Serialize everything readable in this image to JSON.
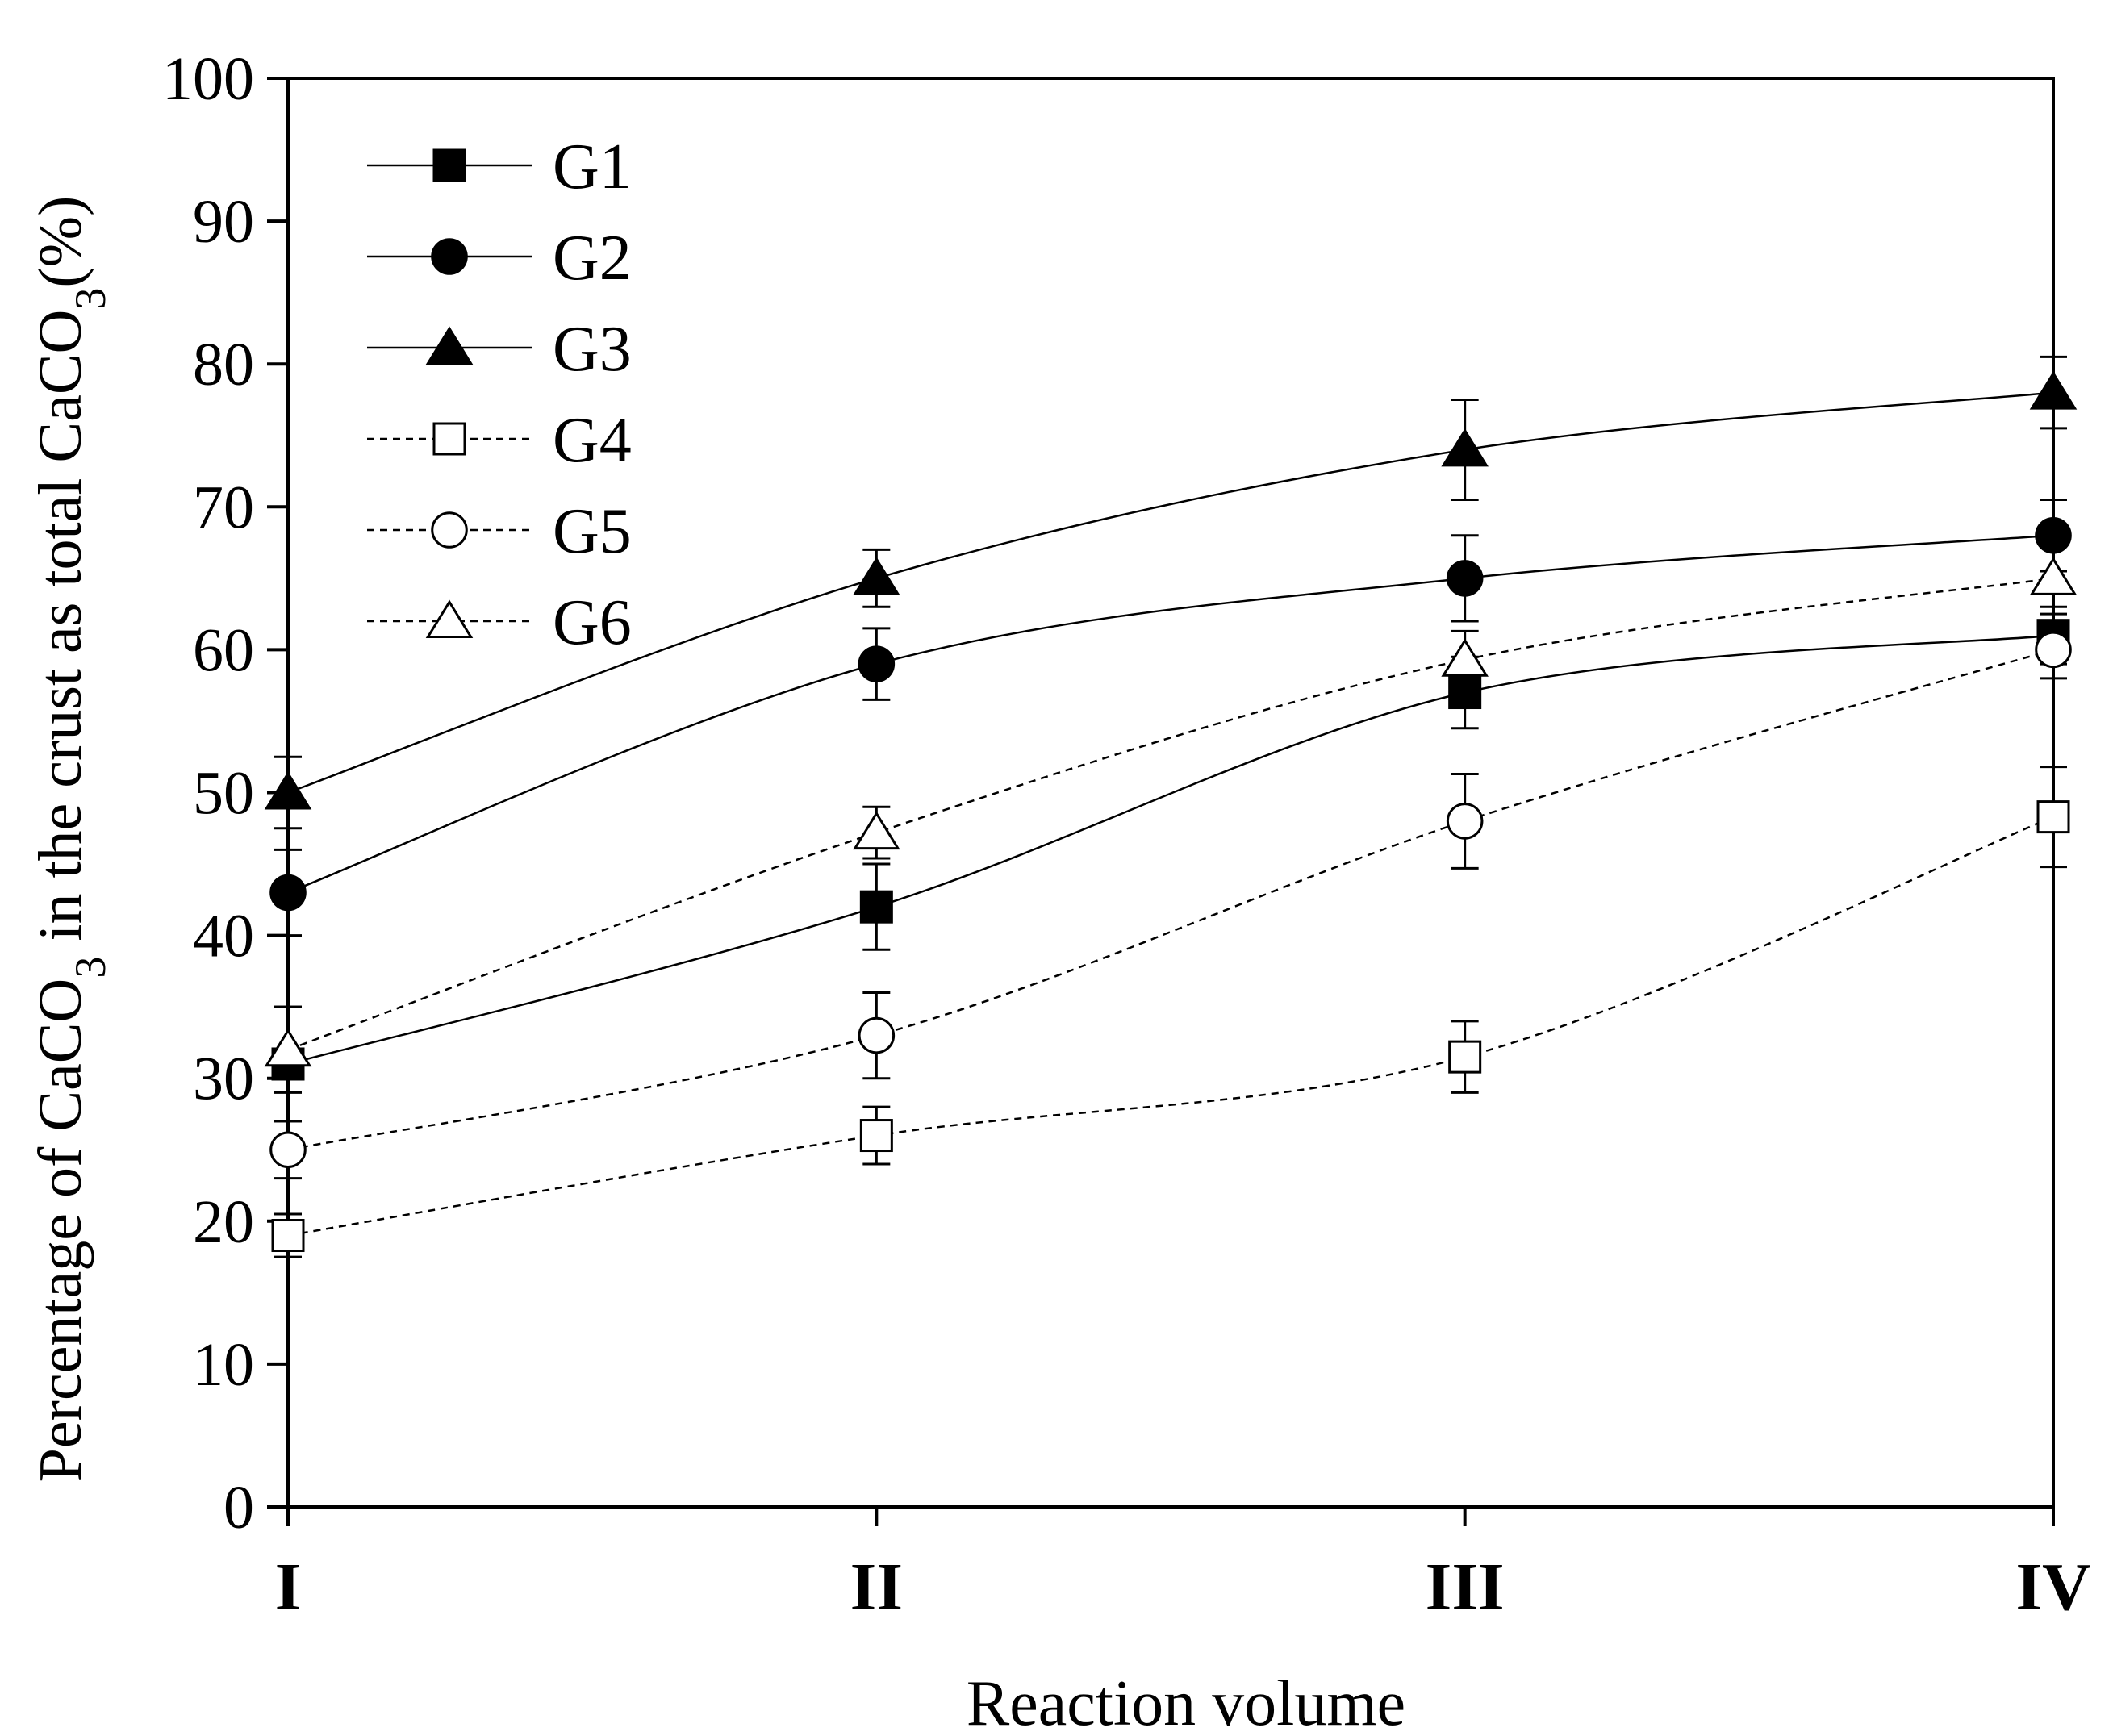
{
  "chart_data": {
    "type": "line",
    "title": "",
    "xlabel": "Reaction volume",
    "ylabel": {
      "part1": "Percentage of CaCO",
      "sub1": "3",
      "part2": " in the crust as total CaCO",
      "sub2": "3",
      "part3": "(%)"
    },
    "categories": [
      "I",
      "II",
      "III",
      "IV"
    ],
    "ylim": [
      0,
      100
    ],
    "yticks": [
      0,
      10,
      20,
      30,
      40,
      50,
      60,
      70,
      80,
      90,
      100
    ],
    "legend_position": "top-left",
    "series": [
      {
        "name": "G1",
        "marker": "square",
        "filled": true,
        "line": "solid",
        "values": [
          31,
          42,
          57,
          61
        ],
        "errors": [
          4,
          3,
          2.5,
          2
        ]
      },
      {
        "name": "G2",
        "marker": "circle",
        "filled": true,
        "line": "solid",
        "values": [
          43,
          59,
          65,
          68
        ],
        "errors": [
          3,
          2.5,
          3,
          2.5
        ]
      },
      {
        "name": "G3",
        "marker": "triangle",
        "filled": true,
        "line": "solid",
        "values": [
          50,
          65,
          74,
          78
        ],
        "errors": [
          2.5,
          2,
          3.5,
          2.5
        ]
      },
      {
        "name": "G4",
        "marker": "square",
        "filled": false,
        "line": "dashed",
        "values": [
          19,
          26,
          31.5,
          48.3
        ],
        "errors": [
          1.5,
          2,
          2.5,
          3.5
        ]
      },
      {
        "name": "G5",
        "marker": "circle",
        "filled": false,
        "line": "dashed",
        "values": [
          25,
          33,
          48,
          60
        ],
        "errors": [
          2,
          3,
          3.3,
          2
        ]
      },
      {
        "name": "G6",
        "marker": "triangle",
        "filled": false,
        "line": "dashed",
        "values": [
          32,
          47.2,
          59.3,
          65
        ],
        "errors": [
          3,
          1.8,
          2,
          2.5
        ]
      }
    ]
  }
}
